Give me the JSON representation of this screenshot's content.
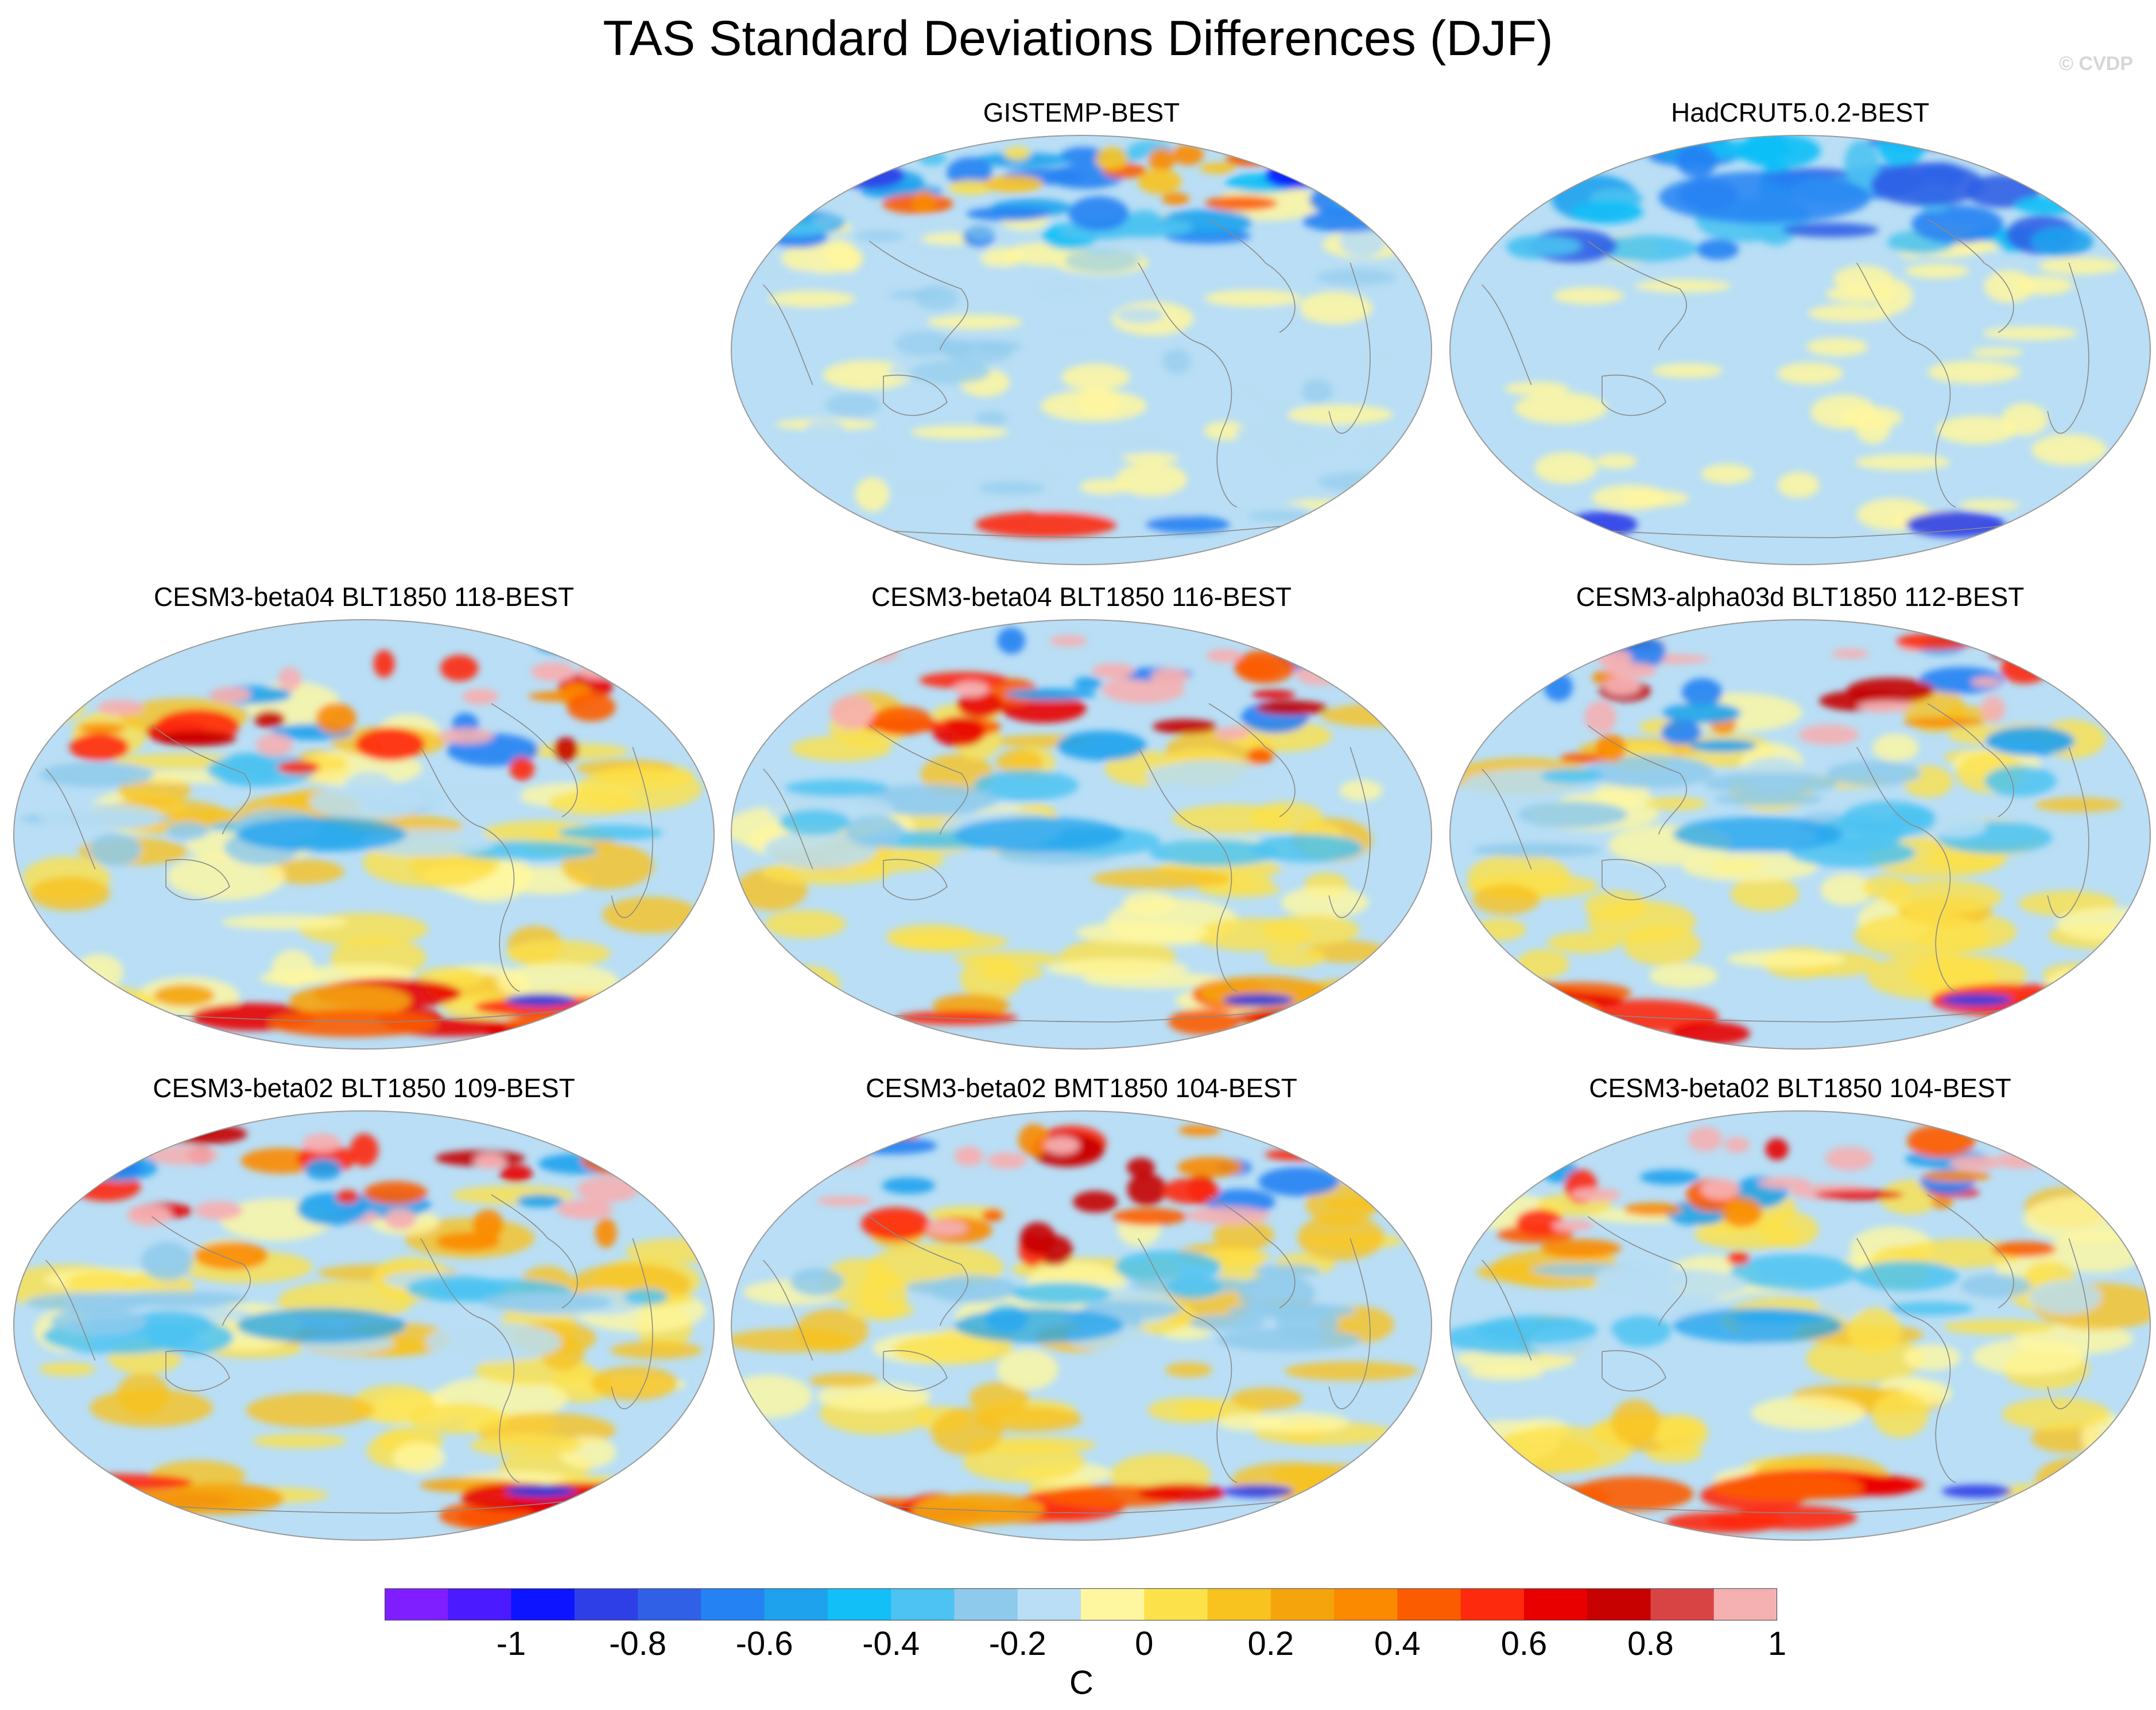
{
  "title": "TAS Standard Deviations Differences (DJF)",
  "watermark": "© CVDP",
  "panels": [
    {
      "title": "GISTEMP-BEST",
      "scheme": "obs1"
    },
    {
      "title": "HadCRUT5.0.2-BEST",
      "scheme": "obs2"
    },
    {
      "title": "CESM3-beta04 BLT1850 118-BEST",
      "scheme": "model"
    },
    {
      "title": "CESM3-beta04 BLT1850 116-BEST",
      "scheme": "model"
    },
    {
      "title": "CESM3-alpha03d BLT1850 112-BEST",
      "scheme": "model"
    },
    {
      "title": "CESM3-beta02 BLT1850 109-BEST",
      "scheme": "model"
    },
    {
      "title": "CESM3-beta02 BMT1850 104-BEST",
      "scheme": "model"
    },
    {
      "title": "CESM3-beta02 BLT1850 104-BEST",
      "scheme": "model"
    }
  ],
  "colorbar": {
    "units": "C",
    "colors": [
      "#7f1fff",
      "#4c1aff",
      "#0d14ff",
      "#2f3fe8",
      "#3060e6",
      "#2582f3",
      "#1ea2ee",
      "#12bff7",
      "#4cc3f2",
      "#8ecaec",
      "#b9def5",
      "#fff7a0",
      "#fde14a",
      "#f8c21f",
      "#f5a40b",
      "#fb8a00",
      "#fc5c00",
      "#fe2a0e",
      "#e80000",
      "#c70000",
      "#d84444",
      "#f5b0b2"
    ],
    "tick_labels": [
      "-1",
      "-0.8",
      "-0.6",
      "-0.4",
      "-0.2",
      "0",
      "0.2",
      "0.4",
      "0.6",
      "0.8",
      "1"
    ]
  },
  "map_palette": {
    "ocean_neutral": "#b9def5",
    "land_line": "#8a8a8a"
  }
}
